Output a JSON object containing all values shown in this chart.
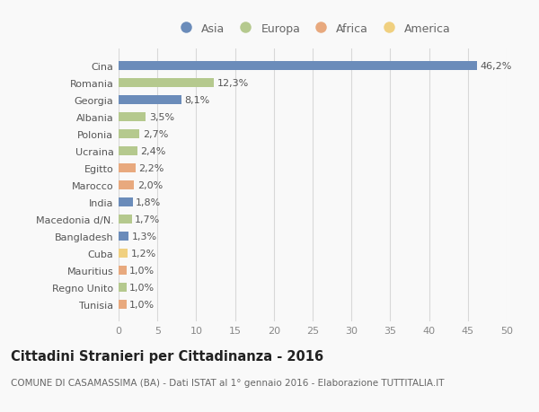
{
  "countries": [
    "Cina",
    "Romania",
    "Georgia",
    "Albania",
    "Polonia",
    "Ucraina",
    "Egitto",
    "Marocco",
    "India",
    "Macedonia d/N.",
    "Bangladesh",
    "Cuba",
    "Mauritius",
    "Regno Unito",
    "Tunisia"
  ],
  "values": [
    46.2,
    12.3,
    8.1,
    3.5,
    2.7,
    2.4,
    2.2,
    2.0,
    1.8,
    1.7,
    1.3,
    1.2,
    1.0,
    1.0,
    1.0
  ],
  "labels": [
    "46,2%",
    "12,3%",
    "8,1%",
    "3,5%",
    "2,7%",
    "2,4%",
    "2,2%",
    "2,0%",
    "1,8%",
    "1,7%",
    "1,3%",
    "1,2%",
    "1,0%",
    "1,0%",
    "1,0%"
  ],
  "continents": [
    "Asia",
    "Europa",
    "Asia",
    "Europa",
    "Europa",
    "Europa",
    "Africa",
    "Africa",
    "Asia",
    "Europa",
    "Asia",
    "America",
    "Africa",
    "Europa",
    "Africa"
  ],
  "continent_colors": {
    "Asia": "#6b8cba",
    "Europa": "#b5c98e",
    "Africa": "#e8a97e",
    "America": "#f0d080"
  },
  "legend_order": [
    "Asia",
    "Europa",
    "Africa",
    "America"
  ],
  "xlim": [
    0,
    50
  ],
  "xticks": [
    0,
    5,
    10,
    15,
    20,
    25,
    30,
    35,
    40,
    45,
    50
  ],
  "title": "Cittadini Stranieri per Cittadinanza - 2016",
  "subtitle": "COMUNE DI CASAMASSIMA (BA) - Dati ISTAT al 1° gennaio 2016 - Elaborazione TUTTITALIA.IT",
  "bg_color": "#f9f9f9",
  "grid_color": "#d8d8d8",
  "bar_height": 0.55,
  "label_fontsize": 8.0,
  "title_fontsize": 10.5,
  "subtitle_fontsize": 7.5
}
